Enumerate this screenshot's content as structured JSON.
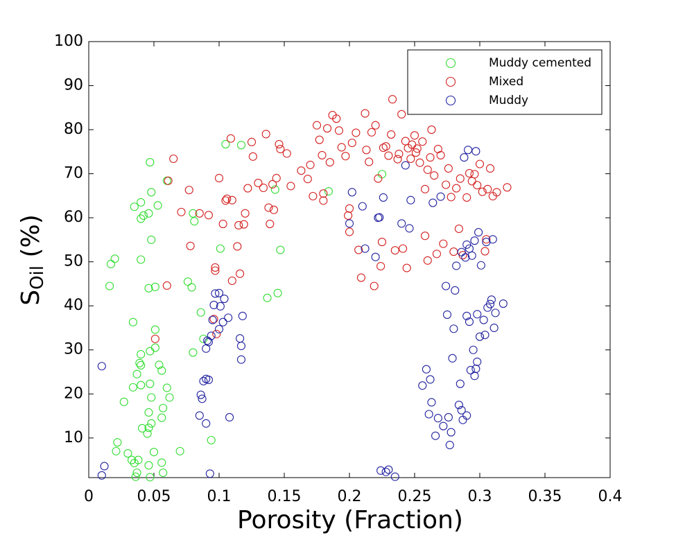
{
  "chart_data": {
    "type": "scatter",
    "xlabel": "Porosity (Fraction)",
    "ylabel": {
      "main": "S",
      "sub": "Oil",
      "rest": " (%)"
    },
    "xlim": [
      0,
      0.4
    ],
    "xticks": [
      0,
      0.05,
      0.1,
      0.15,
      0.2,
      0.25,
      0.3,
      0.35,
      0.4
    ],
    "ylim": [
      1,
      100
    ],
    "yticks": [
      10,
      20,
      30,
      40,
      50,
      60,
      70,
      80,
      90,
      100
    ],
    "grid": false,
    "legend": "upper right",
    "series": [
      {
        "name": "Muddy cemented",
        "color": "#33dd33",
        "x": [
          0.047,
          0.06,
          0.048,
          0.035,
          0.04,
          0.046,
          0.04,
          0.042,
          0.053,
          0.08,
          0.081,
          0.02,
          0.017,
          0.016,
          0.048,
          0.04,
          0.046,
          0.051,
          0.076,
          0.079,
          0.105,
          0.117,
          0.143,
          0.101,
          0.147,
          0.137,
          0.145,
          0.034,
          0.051,
          0.047,
          0.04,
          0.051,
          0.039,
          0.04,
          0.054,
          0.056,
          0.037,
          0.047,
          0.04,
          0.034,
          0.06,
          0.062,
          0.048,
          0.027,
          0.057,
          0.046,
          0.056,
          0.048,
          0.041,
          0.045,
          0.046,
          0.022,
          0.03,
          0.021,
          0.033,
          0.035,
          0.038,
          0.037,
          0.046,
          0.056,
          0.05,
          0.057,
          0.036,
          0.047,
          0.07,
          0.094,
          0.086,
          0.08,
          0.225,
          0.184,
          0.088
        ],
        "values": [
          72.6,
          68.4,
          65.8,
          62.5,
          63.5,
          61,
          59.8,
          60.5,
          62.8,
          61,
          59.2,
          50.7,
          49.5,
          44.5,
          55,
          50.5,
          44,
          44.3,
          45.5,
          44.2,
          76.7,
          76.5,
          66.4,
          53,
          52.7,
          41.8,
          42.9,
          36.3,
          34.6,
          29.7,
          29,
          30.5,
          27,
          26.5,
          26.6,
          25.3,
          24.5,
          22.3,
          22,
          21.5,
          21.4,
          19.2,
          19.2,
          18.2,
          16.8,
          15.8,
          14.6,
          13.3,
          12.2,
          11,
          12.3,
          9,
          6.5,
          7,
          5,
          4.3,
          5,
          2.1,
          3.8,
          4.4,
          6.8,
          2.1,
          1.2,
          1.1,
          7,
          9.5,
          38.5,
          29.4,
          69.9,
          66,
          32.5
        ]
      },
      {
        "name": "Mixed",
        "color": "#d42020",
        "x": [
          0.051,
          0.06,
          0.065,
          0.061,
          0.071,
          0.077,
          0.078,
          0.085,
          0.097,
          0.097,
          0.096,
          0.098,
          0.092,
          0.1,
          0.103,
          0.105,
          0.106,
          0.109,
          0.11,
          0.11,
          0.114,
          0.115,
          0.116,
          0.119,
          0.12,
          0.122,
          0.125,
          0.126,
          0.13,
          0.134,
          0.136,
          0.138,
          0.139,
          0.141,
          0.142,
          0.144,
          0.146,
          0.147,
          0.152,
          0.155,
          0.163,
          0.168,
          0.17,
          0.172,
          0.175,
          0.177,
          0.179,
          0.18,
          0.183,
          0.185,
          0.187,
          0.19,
          0.192,
          0.194,
          0.197,
          0.199,
          0.2,
          0.202,
          0.205,
          0.207,
          0.209,
          0.212,
          0.213,
          0.215,
          0.217,
          0.219,
          0.22,
          0.222,
          0.224,
          0.226,
          0.228,
          0.23,
          0.232,
          0.233,
          0.235,
          0.237,
          0.238,
          0.24,
          0.241,
          0.243,
          0.244,
          0.245,
          0.247,
          0.248,
          0.25,
          0.251,
          0.252,
          0.254,
          0.256,
          0.258,
          0.26,
          0.26,
          0.262,
          0.263,
          0.265,
          0.267,
          0.268,
          0.27,
          0.272,
          0.274,
          0.276,
          0.278,
          0.28,
          0.282,
          0.284,
          0.285,
          0.287,
          0.29,
          0.292,
          0.294,
          0.296,
          0.298,
          0.3,
          0.302,
          0.304,
          0.306,
          0.308,
          0.31,
          0.313,
          0.321,
          0.305,
          0.2,
          0.18,
          0.225,
          0.258
        ],
        "values": [
          32.5,
          44.6,
          73.4,
          68.4,
          61.3,
          66.3,
          53.6,
          61,
          48.7,
          48,
          37,
          33.6,
          60.6,
          69,
          58.6,
          63.9,
          64.3,
          78,
          45.7,
          64,
          53.5,
          58.3,
          47.3,
          58.5,
          61,
          66.7,
          77.2,
          73.9,
          67.9,
          66.8,
          79,
          62.3,
          58.6,
          67.6,
          61.8,
          69,
          76.7,
          75.6,
          74.6,
          67.2,
          70.7,
          68.8,
          72,
          64.9,
          81,
          77.7,
          74.2,
          63.9,
          80.3,
          72.6,
          83.3,
          82.5,
          79.8,
          76,
          74,
          60.5,
          62.1,
          77,
          79.3,
          52.7,
          46.4,
          83.7,
          75.4,
          72.7,
          79.4,
          44.5,
          81,
          68.9,
          49,
          75.9,
          76.2,
          74.1,
          78.9,
          86.9,
          52.6,
          73.3,
          74.5,
          83.5,
          53,
          77.4,
          48.6,
          75.8,
          73.4,
          76.6,
          78.7,
          74.8,
          75.7,
          72.5,
          77.3,
          55.9,
          70.9,
          50.3,
          73.7,
          80,
          69.6,
          51.8,
          75.6,
          74.2,
          54.1,
          67.5,
          71.2,
          64.7,
          52.3,
          66.7,
          57.5,
          68.9,
          51.5,
          64.6,
          70.1,
          68.3,
          69.9,
          67.4,
          72.2,
          65.9,
          52.4,
          66.5,
          71.2,
          64.9,
          65.8,
          66.9,
          55.1,
          56.8,
          65.5,
          54.5,
          66.5
        ]
      },
      {
        "name": "Muddy",
        "color": "#2323a0",
        "x": [
          0.01,
          0.01,
          0.012,
          0.093,
          0.087,
          0.088,
          0.09,
          0.092,
          0.085,
          0.09,
          0.086,
          0.09,
          0.092,
          0.094,
          0.091,
          0.095,
          0.096,
          0.097,
          0.1,
          0.101,
          0.103,
          0.104,
          0.107,
          0.108,
          0.116,
          0.117,
          0.117,
          0.118,
          0.1,
          0.2,
          0.202,
          0.21,
          0.212,
          0.22,
          0.222,
          0.223,
          0.224,
          0.228,
          0.23,
          0.235,
          0.226,
          0.24,
          0.243,
          0.246,
          0.247,
          0.256,
          0.259,
          0.261,
          0.262,
          0.263,
          0.264,
          0.266,
          0.268,
          0.27,
          0.272,
          0.274,
          0.275,
          0.276,
          0.277,
          0.278,
          0.279,
          0.28,
          0.281,
          0.282,
          0.284,
          0.285,
          0.286,
          0.287,
          0.288,
          0.29,
          0.29,
          0.291,
          0.292,
          0.293,
          0.294,
          0.295,
          0.296,
          0.296,
          0.297,
          0.298,
          0.299,
          0.3,
          0.301,
          0.303,
          0.304,
          0.305,
          0.306,
          0.308,
          0.309,
          0.31,
          0.311,
          0.312,
          0.318,
          0.29,
          0.292,
          0.286,
          0.298,
          0.297,
          0.289
        ],
        "values": [
          26.3,
          1.5,
          3.6,
          1.9,
          18.9,
          22.9,
          23.4,
          23.2,
          15.1,
          13.3,
          19.8,
          30.3,
          31.8,
          33.2,
          32.1,
          36.8,
          40.2,
          42.8,
          42.9,
          39.9,
          36.3,
          41.6,
          37.3,
          14.7,
          32.6,
          30.9,
          27.8,
          37.7,
          34.7,
          58.7,
          65.8,
          62.6,
          53,
          51.1,
          60,
          60.1,
          2.6,
          2.3,
          2.8,
          1.2,
          64.6,
          58.7,
          71.9,
          57.6,
          64,
          21.9,
          25.6,
          15.4,
          23.3,
          18.1,
          63.4,
          10.5,
          14.5,
          64.8,
          12.7,
          44.5,
          38,
          14.7,
          8.4,
          11.3,
          28.1,
          34.8,
          43.5,
          49.1,
          17.5,
          22.3,
          16.3,
          14.1,
          73.7,
          53.9,
          37.7,
          75.4,
          36.4,
          25.4,
          51.4,
          30,
          24.1,
          54.8,
          75.1,
          38.1,
          56.7,
          33,
          49.2,
          36.8,
          33.4,
          54.5,
          39.6,
          40.4,
          41.4,
          55.1,
          35,
          38.4,
          40.5,
          15.1,
          53,
          52.2,
          27.3,
          25.7,
          51
        ]
      }
    ]
  }
}
